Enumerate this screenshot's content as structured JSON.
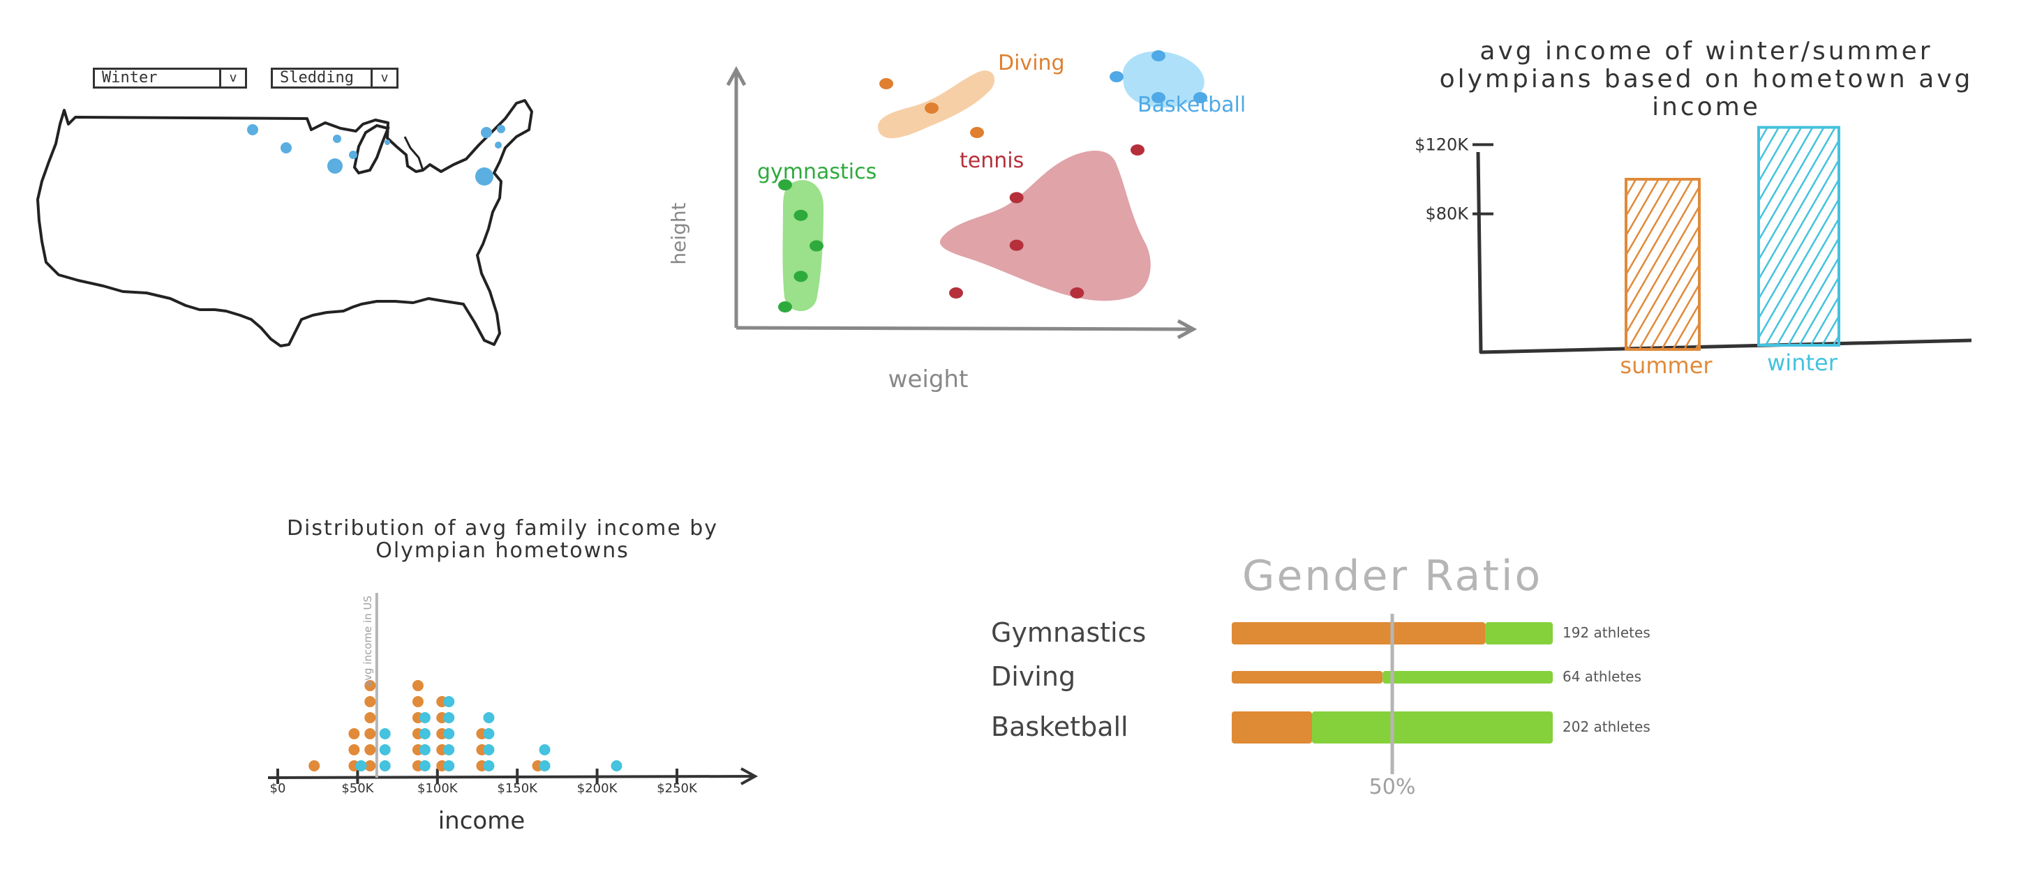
{
  "map_panel": {
    "season_select": {
      "value": "Winter"
    },
    "sport_select": {
      "value": "Sledding"
    },
    "dot_color": "#5aaee0"
  },
  "colors": {
    "summer": "#e08a3a",
    "winter": "#44c2de",
    "male": "#df8a35",
    "female": "#84d13c",
    "gymnastics": "#2eaa3c",
    "diving": "#df7f2f",
    "basketball": "#4ea9e6",
    "tennis": "#b5303b",
    "axis": "#888888",
    "ink": "#333333"
  },
  "chart_data": [
    {
      "type": "scatter",
      "title": "",
      "xlabel": "weight",
      "ylabel": "height",
      "series": [
        {
          "name": "Diving",
          "points": [
            [
              1,
              1
            ],
            [
              2,
              2
            ],
            [
              3,
              3
            ]
          ]
        },
        {
          "name": "Basketball",
          "points": [
            [
              1,
              2
            ],
            [
              2,
              3
            ],
            [
              3,
              1
            ],
            [
              2,
              1
            ]
          ]
        },
        {
          "name": "gymnastics",
          "points": [
            [
              1,
              5
            ],
            [
              2,
              4
            ],
            [
              3,
              3
            ],
            [
              2,
              2
            ],
            [
              1,
              1
            ]
          ]
        },
        {
          "name": "tennis",
          "points": [
            [
              1,
              1
            ],
            [
              2,
              2
            ],
            [
              3,
              1
            ],
            [
              2,
              3
            ],
            [
              4,
              4
            ]
          ]
        }
      ]
    },
    {
      "type": "bar",
      "title": "avg income of winter/summer olympians based on hometown avg income",
      "xlabel": "",
      "ylabel": "",
      "categories": [
        "summer",
        "winter"
      ],
      "values": [
        100000,
        130000
      ],
      "ticks": [
        "$80K",
        "$120K"
      ],
      "tick_values": [
        80000,
        120000
      ]
    },
    {
      "type": "scatter",
      "title": "Distribution of avg family income by Olympian hometowns",
      "xlabel": "income",
      "ylabel": "",
      "reference_label": "avg income in US",
      "reference_value": 62000,
      "tick_labels": [
        "$0",
        "$50K",
        "$100K",
        "$150K",
        "$200K",
        "$250K"
      ],
      "tick_values": [
        0,
        50000,
        100000,
        150000,
        200000,
        250000
      ],
      "series": [
        {
          "name": "summer",
          "x": [
            25000,
            50000,
            60000,
            90000,
            105000,
            130000,
            165000
          ],
          "counts": [
            1,
            3,
            6,
            6,
            5,
            3,
            1
          ]
        },
        {
          "name": "winter",
          "x": [
            50000,
            65000,
            90000,
            105000,
            130000,
            165000,
            210000
          ],
          "counts": [
            1,
            3,
            4,
            5,
            4,
            2,
            1
          ]
        }
      ]
    },
    {
      "type": "bar",
      "title": "Gender Ratio",
      "midline_label": "50%",
      "categories": [
        "Gymnastics",
        "Diving",
        "Basketball"
      ],
      "male_share": [
        0.79,
        0.47,
        0.25
      ],
      "athlete_counts": [
        192,
        64,
        202
      ],
      "count_labels": [
        "192 athletes",
        "64 athletes",
        "202 athletes"
      ]
    }
  ]
}
